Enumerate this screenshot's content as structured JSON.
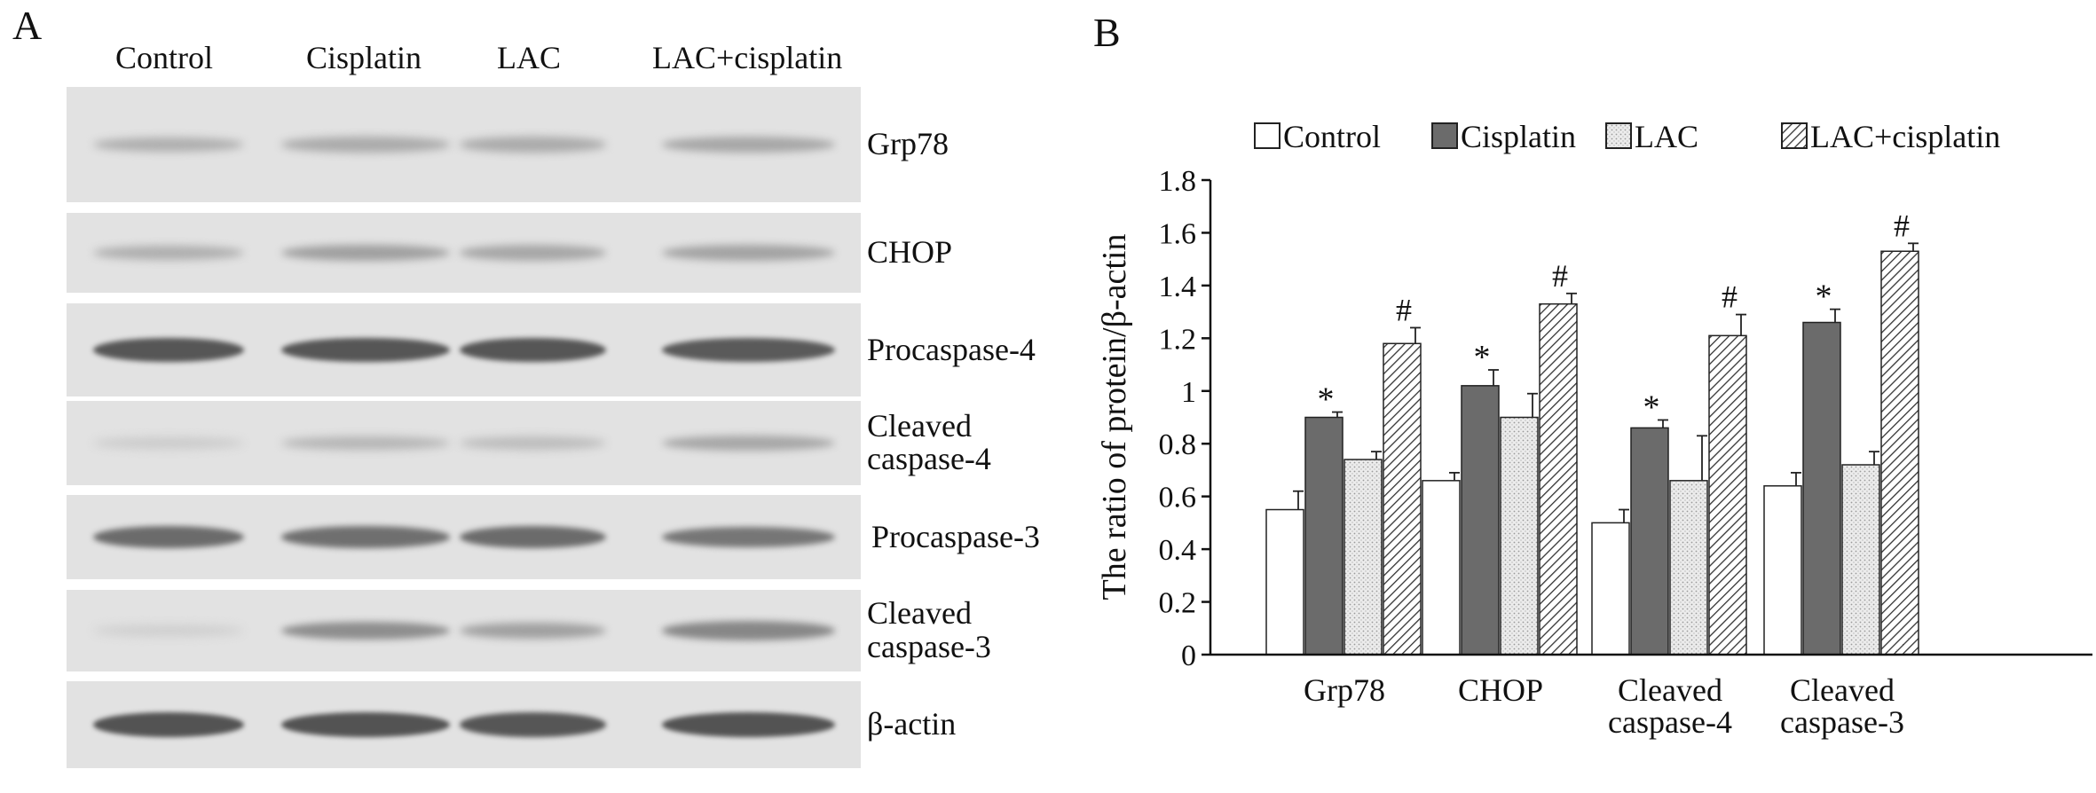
{
  "panel_a": {
    "letter": "A",
    "lanes": [
      "Control",
      "Cisplatin",
      "LAC",
      "LAC+cisplatin"
    ],
    "rows": [
      {
        "label_lines": [
          "Grp78"
        ],
        "band_intensity": [
          0.3,
          0.32,
          0.32,
          0.34
        ]
      },
      {
        "label_lines": [
          "CHOP"
        ],
        "band_intensity": [
          0.3,
          0.38,
          0.34,
          0.36
        ]
      },
      {
        "label_lines": [
          "Procaspase-4"
        ],
        "band_intensity": [
          0.8,
          0.8,
          0.8,
          0.78
        ]
      },
      {
        "label_lines": [
          "Cleaved",
          "caspase-4"
        ],
        "band_intensity": [
          0.14,
          0.26,
          0.22,
          0.34
        ]
      },
      {
        "label_lines": [
          "Procaspase-3"
        ],
        "band_intensity": [
          0.68,
          0.66,
          0.68,
          0.62
        ]
      },
      {
        "label_lines": [
          "Cleaved",
          "caspase-3"
        ],
        "band_intensity": [
          0.12,
          0.48,
          0.38,
          0.52
        ]
      },
      {
        "label_lines": [
          "β-actin"
        ],
        "band_intensity": [
          0.82,
          0.82,
          0.8,
          0.82
        ]
      }
    ]
  },
  "chart_data": {
    "panel_letter": "B",
    "type": "bar",
    "ylabel": "The ratio of protein/β-actin",
    "ylim": [
      0,
      1.8
    ],
    "yticks": [
      0,
      0.2,
      0.4,
      0.6,
      0.8,
      1,
      1.2,
      1.4,
      1.6,
      1.8
    ],
    "ytick_labels": [
      "0",
      "0.2",
      "0.4",
      "0.6",
      "0.8",
      "1",
      "1.2",
      "1.4",
      "1.6",
      "1.8"
    ],
    "categories": [
      [
        "Grp78"
      ],
      [
        "CHOP"
      ],
      [
        "Cleaved",
        "caspase-4"
      ],
      [
        "Cleaved",
        "caspase-3"
      ]
    ],
    "series": [
      {
        "name": "Control",
        "fill": "#ffffff",
        "pattern": "none",
        "values": [
          0.55,
          0.66,
          0.5,
          0.64
        ],
        "errors": [
          0.07,
          0.03,
          0.05,
          0.05
        ],
        "markers": [
          "",
          "",
          "",
          ""
        ]
      },
      {
        "name": "Cisplatin",
        "fill": "#6b6b6b",
        "pattern": "none",
        "values": [
          0.9,
          1.02,
          0.86,
          1.26
        ],
        "errors": [
          0.02,
          0.06,
          0.03,
          0.05
        ],
        "markers": [
          "*",
          "*",
          "*",
          "*"
        ]
      },
      {
        "name": "LAC",
        "fill": "#e8e8e8",
        "pattern": "dots",
        "values": [
          0.74,
          0.9,
          0.66,
          0.72
        ],
        "errors": [
          0.03,
          0.09,
          0.17,
          0.05
        ],
        "markers": [
          "",
          "",
          "",
          ""
        ]
      },
      {
        "name": "LAC+cisplatin",
        "fill": "#ffffff",
        "pattern": "hatch",
        "values": [
          1.18,
          1.33,
          1.21,
          1.53
        ],
        "errors": [
          0.06,
          0.04,
          0.08,
          0.03
        ],
        "markers": [
          "#",
          "#",
          "#",
          "#"
        ]
      }
    ],
    "legend_position": "top",
    "grid": false
  }
}
